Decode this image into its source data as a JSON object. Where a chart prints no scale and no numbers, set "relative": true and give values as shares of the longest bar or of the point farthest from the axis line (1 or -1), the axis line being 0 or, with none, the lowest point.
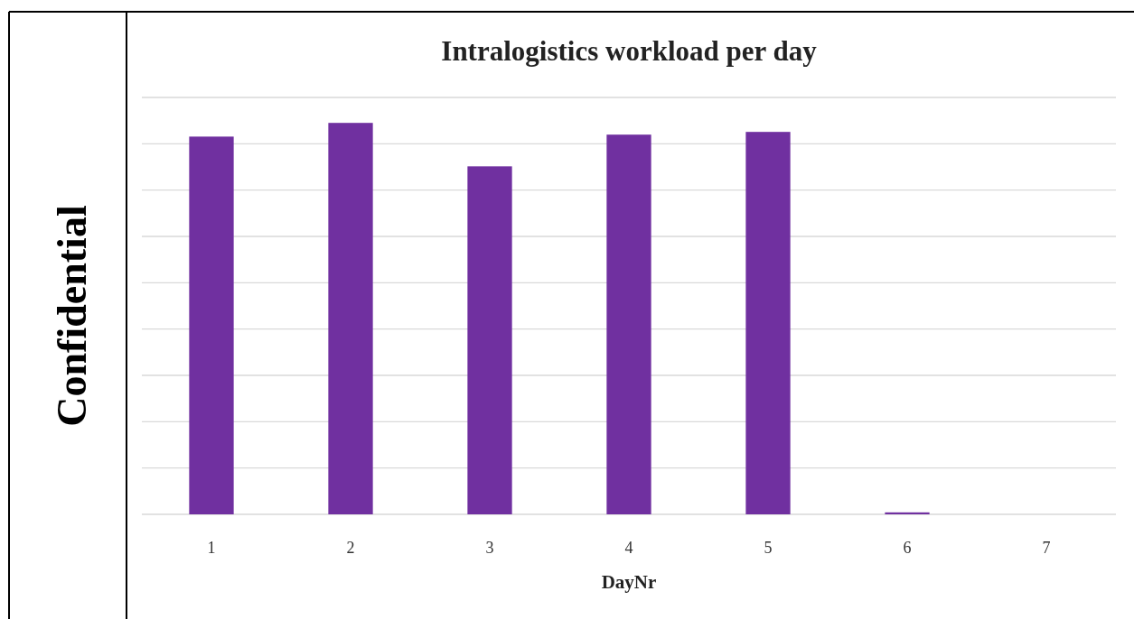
{
  "chart_data": {
    "type": "bar",
    "title": "Intralogistics workload per day",
    "xlabel": "DayNr",
    "categories": [
      "1",
      "2",
      "3",
      "4",
      "5",
      "6",
      "7"
    ],
    "values": [
      0.965,
      1,
      0.889,
      0.97,
      0.977,
      0.005,
      0
    ],
    "color": "#7030a0",
    "relative": true,
    "grid": "y",
    "annotations": [
      "Confidential"
    ]
  }
}
